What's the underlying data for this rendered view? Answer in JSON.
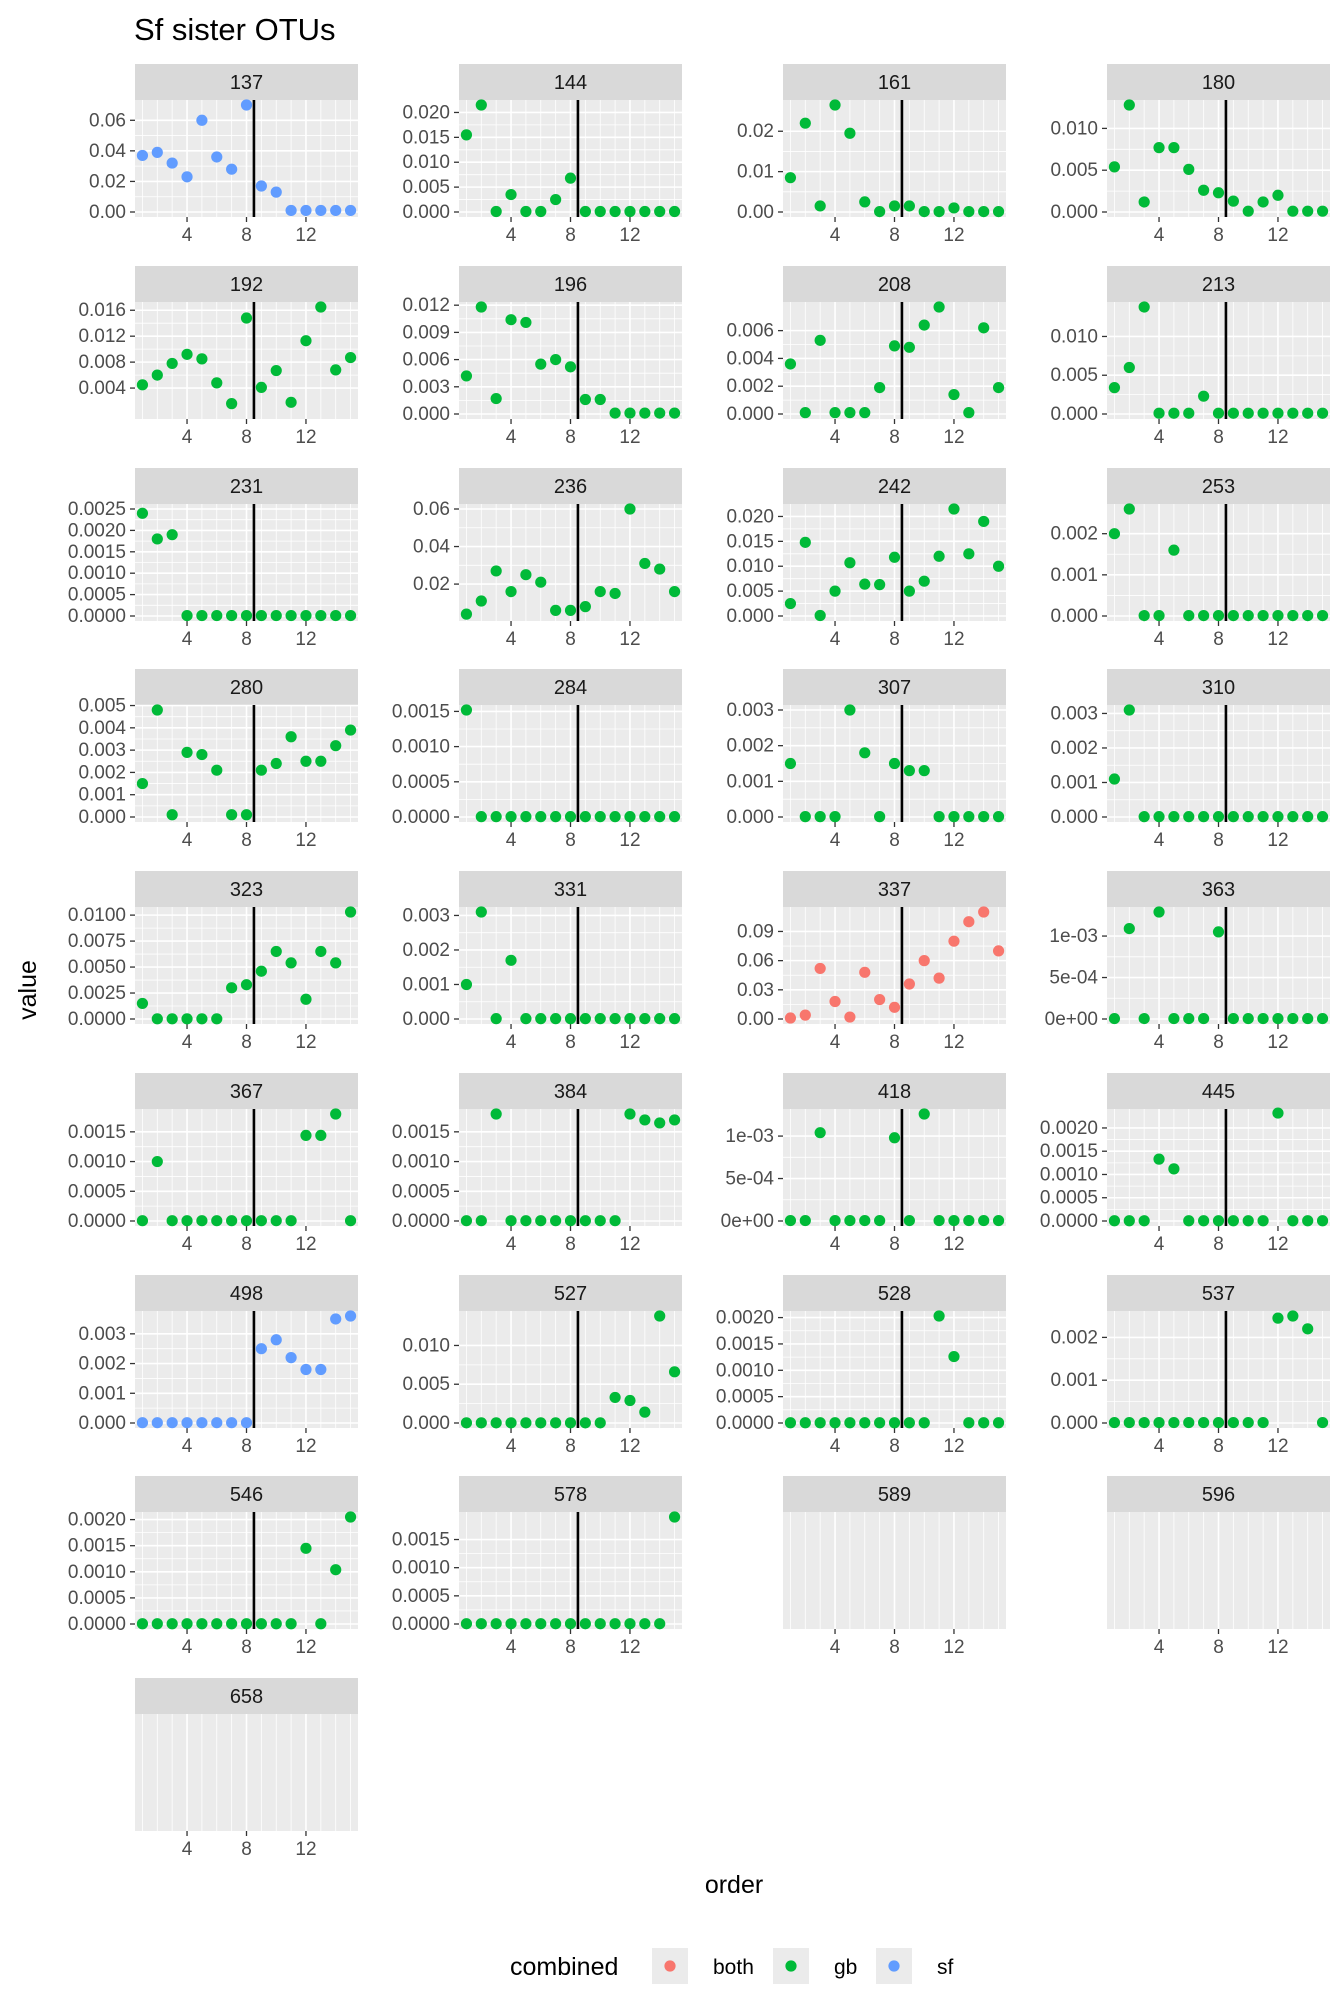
{
  "chart_data": {
    "type": "scatter",
    "title": "Sf sister OTUs",
    "xlabel": "order",
    "ylabel": "value",
    "xlim": [
      0.5,
      15.5
    ],
    "x_ticks": [
      4,
      8,
      12
    ],
    "x_values": [
      1,
      2,
      3,
      4,
      5,
      6,
      7,
      8,
      9,
      10,
      11,
      12,
      13,
      14,
      15
    ],
    "facet_column_count": 4,
    "vline_x": 8.5,
    "grid": true,
    "legend": {
      "title": "combined",
      "position": "bottom",
      "entries": [
        {
          "label": "both",
          "color": "#F8766D"
        },
        {
          "label": "gb",
          "color": "#00BA38"
        },
        {
          "label": "sf",
          "color": "#619CFF"
        }
      ]
    },
    "panels": [
      {
        "label": "137",
        "ylim": [
          0,
          0.07
        ],
        "yticks": [
          0,
          0.02,
          0.04,
          0.06
        ],
        "ytick_labels": [
          "0.00",
          "0.02",
          "0.04",
          "0.06"
        ],
        "group": "sf",
        "values": [
          0.037,
          0.039,
          0.032,
          0.023,
          0.06,
          0.036,
          0.028,
          0.07,
          0.017,
          0.013,
          0.001,
          0.001,
          0.001,
          0.001,
          0.001
        ]
      },
      {
        "label": "144",
        "ylim": [
          0,
          0.0215
        ],
        "yticks": [
          0,
          0.005,
          0.01,
          0.015,
          0.02
        ],
        "ytick_labels": [
          "0.000",
          "0.005",
          "0.010",
          "0.015",
          "0.020"
        ],
        "group": "gb",
        "values": [
          0.0155,
          0.0215,
          0.0001,
          0.0035,
          0.0001,
          0.0001,
          0.0025,
          0.0068,
          0.0001,
          0.0001,
          0.0001,
          0.0001,
          0.0001,
          0.0001,
          0.0001
        ]
      },
      {
        "label": "161",
        "ylim": [
          0,
          0.0265
        ],
        "yticks": [
          0,
          0.01,
          0.02
        ],
        "ytick_labels": [
          "0.00",
          "0.01",
          "0.02"
        ],
        "group": "gb",
        "values": [
          0.0085,
          0.022,
          0.0015,
          0.0265,
          0.0195,
          0.0025,
          0.0001,
          0.0015,
          0.0015,
          0.0001,
          0.0001,
          0.001,
          0.0001,
          0.0001,
          0.0001
        ]
      },
      {
        "label": "180",
        "ylim": [
          0,
          0.0128
        ],
        "yticks": [
          0,
          0.005,
          0.01
        ],
        "ytick_labels": [
          "0.000",
          "0.005",
          "0.010"
        ],
        "group": "gb",
        "values": [
          0.0054,
          0.0128,
          0.0012,
          0.0077,
          0.0077,
          0.0051,
          0.0026,
          0.0023,
          0.0013,
          0.0001,
          0.0012,
          0.002,
          0.0001,
          0.0001,
          0.0001
        ]
      },
      {
        "label": "192",
        "ylim": [
          0,
          0.0165
        ],
        "yticks": [
          0.004,
          0.008,
          0.012,
          0.016
        ],
        "ytick_labels": [
          "0.004",
          "0.008",
          "0.012",
          "0.016"
        ],
        "group": "gb",
        "values": [
          0.0045,
          0.006,
          0.0078,
          0.0092,
          0.0085,
          0.0048,
          0.0016,
          0.0148,
          0.0041,
          0.0067,
          0.0018,
          0.0113,
          0.0165,
          0.0068,
          0.0087
        ]
      },
      {
        "label": "196",
        "ylim": [
          0,
          0.0118
        ],
        "yticks": [
          0,
          0.003,
          0.006,
          0.009,
          0.012
        ],
        "ytick_labels": [
          "0.000",
          "0.003",
          "0.006",
          "0.009",
          "0.012"
        ],
        "group": "gb",
        "values": [
          0.0042,
          0.0118,
          0.0017,
          0.0104,
          0.0101,
          0.0055,
          0.006,
          0.0052,
          0.0016,
          0.0016,
          0.0001,
          0.0001,
          0.0001,
          0.0001,
          0.0001
        ]
      },
      {
        "label": "208",
        "ylim": [
          0,
          0.0077
        ],
        "yticks": [
          0,
          0.002,
          0.004,
          0.006
        ],
        "ytick_labels": [
          "0.000",
          "0.002",
          "0.004",
          "0.006"
        ],
        "group": "gb",
        "values": [
          0.0036,
          0.0001,
          0.0053,
          0.0001,
          0.0001,
          0.0001,
          0.0019,
          0.0049,
          0.0048,
          0.0064,
          0.0077,
          0.0014,
          0.0001,
          0.0062,
          0.0019
        ]
      },
      {
        "label": "213",
        "ylim": [
          0,
          0.0138
        ],
        "yticks": [
          0,
          0.005,
          0.01
        ],
        "ytick_labels": [
          "0.000",
          "0.005",
          "0.010"
        ],
        "group": "gb",
        "values": [
          0.0034,
          0.006,
          0.0138,
          0.0001,
          0.0001,
          0.0001,
          0.0023,
          0.0001,
          0.0001,
          0.0001,
          0.0001,
          0.0001,
          0.0001,
          0.0001,
          0.0001
        ]
      },
      {
        "label": "231",
        "ylim": [
          0,
          0.0025
        ],
        "yticks": [
          0,
          0.0005,
          0.001,
          0.0015,
          0.002,
          0.0025
        ],
        "ytick_labels": [
          "0.0000",
          "0.0005",
          "0.0010",
          "0.0015",
          "0.0020",
          "0.0025"
        ],
        "group": "gb",
        "values": [
          0.0024,
          0.0018,
          0.0019,
          1e-05,
          1e-05,
          1e-05,
          1e-05,
          1e-05,
          1e-05,
          1e-05,
          1e-05,
          1e-05,
          1e-05,
          1e-05,
          1e-05
        ]
      },
      {
        "label": "236",
        "ylim": [
          0.003,
          0.06
        ],
        "yticks": [
          0.02,
          0.04,
          0.06
        ],
        "ytick_labels": [
          "0.02",
          "0.04",
          "0.06"
        ],
        "group": "gb",
        "values": [
          0.004,
          0.011,
          0.027,
          0.016,
          0.025,
          0.021,
          0.006,
          0.006,
          0.008,
          0.016,
          0.015,
          0.06,
          0.031,
          0.028,
          0.016
        ]
      },
      {
        "label": "242",
        "ylim": [
          0,
          0.0215
        ],
        "yticks": [
          0,
          0.005,
          0.01,
          0.015,
          0.02
        ],
        "ytick_labels": [
          "0.000",
          "0.005",
          "0.010",
          "0.015",
          "0.020"
        ],
        "group": "gb",
        "values": [
          0.0025,
          0.0148,
          0.0001,
          0.005,
          0.0107,
          0.0064,
          0.0063,
          0.0118,
          0.005,
          0.007,
          0.012,
          0.0215,
          0.0125,
          0.019,
          0.01
        ]
      },
      {
        "label": "253",
        "ylim": [
          0,
          0.0026
        ],
        "yticks": [
          0,
          0.001,
          0.002
        ],
        "ytick_labels": [
          "0.000",
          "0.001",
          "0.002"
        ],
        "group": "gb",
        "values": [
          0.002,
          0.0026,
          1e-05,
          1e-05,
          0.0016,
          1e-05,
          1e-05,
          1e-05,
          1e-05,
          1e-05,
          1e-05,
          1e-05,
          1e-05,
          1e-05,
          1e-05
        ]
      },
      {
        "label": "280",
        "ylim": [
          0,
          0.0048
        ],
        "yticks": [
          0,
          0.001,
          0.002,
          0.003,
          0.004,
          0.005
        ],
        "ytick_labels": [
          "0.000",
          "0.001",
          "0.002",
          "0.003",
          "0.004",
          "0.005"
        ],
        "group": "gb",
        "values": [
          0.0015,
          0.0048,
          0.0001,
          0.0029,
          0.0028,
          0.0021,
          0.0001,
          0.0001,
          0.0021,
          0.0024,
          0.0036,
          0.0025,
          0.0025,
          0.0032,
          0.0039
        ]
      },
      {
        "label": "284",
        "ylim": [
          0,
          0.00152
        ],
        "yticks": [
          0,
          0.0005,
          0.001,
          0.0015
        ],
        "ytick_labels": [
          "0.0000",
          "0.0005",
          "0.0010",
          "0.0015"
        ],
        "group": "gb",
        "values": [
          0.00152,
          5e-06,
          5e-06,
          5e-06,
          5e-06,
          5e-06,
          5e-06,
          5e-06,
          5e-06,
          5e-06,
          5e-06,
          5e-06,
          5e-06,
          5e-06,
          5e-06
        ]
      },
      {
        "label": "307",
        "ylim": [
          0,
          0.003
        ],
        "yticks": [
          0,
          0.001,
          0.002,
          0.003
        ],
        "ytick_labels": [
          "0.000",
          "0.001",
          "0.002",
          "0.003"
        ],
        "group": "gb",
        "values": [
          0.0015,
          1e-05,
          1e-05,
          1e-05,
          0.003,
          0.0018,
          1e-05,
          0.0015,
          0.0013,
          0.0013,
          1e-05,
          1e-05,
          1e-05,
          1e-05,
          1e-05
        ]
      },
      {
        "label": "310",
        "ylim": [
          0,
          0.0031
        ],
        "yticks": [
          0,
          0.001,
          0.002,
          0.003
        ],
        "ytick_labels": [
          "0.000",
          "0.001",
          "0.002",
          "0.003"
        ],
        "group": "gb",
        "values": [
          0.0011,
          0.0031,
          1e-05,
          1e-05,
          1e-05,
          1e-05,
          1e-05,
          1e-05,
          1e-05,
          1e-05,
          1e-05,
          1e-05,
          1e-05,
          1e-05,
          1e-05
        ]
      },
      {
        "label": "323",
        "ylim": [
          0,
          0.0103
        ],
        "yticks": [
          0,
          0.0025,
          0.005,
          0.0075,
          0.01
        ],
        "ytick_labels": [
          "0.0000",
          "0.0025",
          "0.0050",
          "0.0075",
          "0.0100"
        ],
        "group": "gb",
        "values": [
          0.0015,
          2e-05,
          2e-05,
          2e-05,
          2e-05,
          2e-05,
          0.003,
          0.0033,
          0.0046,
          0.0065,
          0.0054,
          0.0019,
          0.0065,
          0.0054,
          0.0103
        ]
      },
      {
        "label": "331",
        "ylim": [
          0,
          0.0031
        ],
        "yticks": [
          0,
          0.001,
          0.002,
          0.003
        ],
        "ytick_labels": [
          "0.000",
          "0.001",
          "0.002",
          "0.003"
        ],
        "group": "gb",
        "values": [
          0.001,
          0.0031,
          1e-05,
          0.0017,
          1e-05,
          1e-05,
          1e-05,
          1e-05,
          1e-05,
          1e-05,
          1e-05,
          1e-05,
          1e-05,
          1e-05,
          1e-05
        ]
      },
      {
        "label": "337",
        "ylim": [
          0,
          0.11
        ],
        "yticks": [
          0,
          0.03,
          0.06,
          0.09
        ],
        "ytick_labels": [
          "0.00",
          "0.03",
          "0.06",
          "0.09"
        ],
        "group": "both",
        "values": [
          0.001,
          0.004,
          0.052,
          0.018,
          0.002,
          0.048,
          0.02,
          0.012,
          0.036,
          0.06,
          0.042,
          0.08,
          0.1,
          0.11,
          0.07
        ]
      },
      {
        "label": "363",
        "ylim": [
          0,
          0.00129
        ],
        "yticks": [
          0,
          0.0005,
          0.001
        ],
        "ytick_labels": [
          "0e+00",
          "5e-04",
          "1e-03"
        ],
        "group": "gb",
        "values": [
          5e-06,
          0.00109,
          5e-06,
          0.00129,
          5e-06,
          5e-06,
          5e-06,
          0.00105,
          5e-06,
          5e-06,
          5e-06,
          5e-06,
          5e-06,
          5e-06,
          5e-06
        ]
      },
      {
        "label": "367",
        "ylim": [
          0,
          0.0018
        ],
        "yticks": [
          0,
          0.0005,
          0.001,
          0.0015
        ],
        "ytick_labels": [
          "0.0000",
          "0.0005",
          "0.0010",
          "0.0015"
        ],
        "group": "gb",
        "values": [
          5e-06,
          0.001,
          5e-06,
          5e-06,
          5e-06,
          5e-06,
          5e-06,
          5e-06,
          5e-06,
          5e-06,
          5e-06,
          0.00144,
          0.00144,
          0.0018,
          5e-06
        ]
      },
      {
        "label": "384",
        "ylim": [
          0,
          0.0018
        ],
        "yticks": [
          0,
          0.0005,
          0.001,
          0.0015
        ],
        "ytick_labels": [
          "0.0000",
          "0.0005",
          "0.0010",
          "0.0015"
        ],
        "group": "gb",
        "values": [
          5e-06,
          5e-06,
          0.0018,
          5e-06,
          5e-06,
          5e-06,
          5e-06,
          5e-06,
          5e-06,
          5e-06,
          5e-06,
          0.0018,
          0.0017,
          0.00165,
          0.0017
        ]
      },
      {
        "label": "418",
        "ylim": [
          0,
          0.00126
        ],
        "yticks": [
          0,
          0.0005,
          0.001
        ],
        "ytick_labels": [
          "0e+00",
          "5e-04",
          "1e-03"
        ],
        "group": "gb",
        "values": [
          5e-06,
          5e-06,
          0.00104,
          5e-06,
          5e-06,
          5e-06,
          5e-06,
          0.00098,
          5e-06,
          0.00126,
          5e-06,
          5e-06,
          5e-06,
          5e-06,
          5e-06
        ]
      },
      {
        "label": "445",
        "ylim": [
          0,
          0.0023
        ],
        "yticks": [
          0,
          0.0005,
          0.001,
          0.0015,
          0.002
        ],
        "ytick_labels": [
          "0.0000",
          "0.0005",
          "0.0010",
          "0.0015",
          "0.0020"
        ],
        "group": "gb",
        "values": [
          5e-06,
          5e-06,
          5e-06,
          0.00133,
          0.00112,
          5e-06,
          5e-06,
          5e-06,
          5e-06,
          5e-06,
          5e-06,
          0.00232,
          5e-06,
          5e-06,
          5e-06
        ]
      },
      {
        "label": "498",
        "ylim": [
          0,
          0.0036
        ],
        "yticks": [
          0,
          0.001,
          0.002,
          0.003
        ],
        "ytick_labels": [
          "0.000",
          "0.001",
          "0.002",
          "0.003"
        ],
        "group": "sf",
        "values": [
          1e-05,
          1e-05,
          1e-05,
          1e-05,
          1e-05,
          1e-05,
          1e-05,
          1e-05,
          0.0025,
          0.0028,
          0.0022,
          0.0018,
          0.0018,
          0.0035,
          0.0036
        ]
      },
      {
        "label": "527",
        "ylim": [
          0,
          0.0138
        ],
        "yticks": [
          0,
          0.005,
          0.01
        ],
        "ytick_labels": [
          "0.000",
          "0.005",
          "0.010"
        ],
        "group": "gb",
        "values": [
          2e-05,
          2e-05,
          2e-05,
          2e-05,
          2e-05,
          2e-05,
          2e-05,
          2e-05,
          2e-05,
          2e-05,
          0.0033,
          0.0029,
          0.0014,
          0.0138,
          0.0066
        ]
      },
      {
        "label": "528",
        "ylim": [
          0,
          0.00203
        ],
        "yticks": [
          0,
          0.0005,
          0.001,
          0.0015,
          0.002
        ],
        "ytick_labels": [
          "0.0000",
          "0.0005",
          "0.0010",
          "0.0015",
          "0.0020"
        ],
        "group": "gb",
        "values": [
          5e-06,
          5e-06,
          5e-06,
          5e-06,
          5e-06,
          5e-06,
          5e-06,
          5e-06,
          5e-06,
          5e-06,
          0.00203,
          0.00126,
          5e-06,
          5e-06,
          5e-06
        ]
      },
      {
        "label": "537",
        "ylim": [
          0,
          0.0025
        ],
        "yticks": [
          0,
          0.001,
          0.002
        ],
        "ytick_labels": [
          "0.000",
          "0.001",
          "0.002"
        ],
        "group": "gb",
        "values": [
          1e-05,
          1e-05,
          1e-05,
          1e-05,
          1e-05,
          1e-05,
          1e-05,
          1e-05,
          1e-05,
          1e-05,
          1e-05,
          0.00245,
          0.0025,
          0.0022,
          1e-05
        ]
      },
      {
        "label": "546",
        "ylim": [
          0,
          0.00205
        ],
        "yticks": [
          0,
          0.0005,
          0.001,
          0.0015,
          0.002
        ],
        "ytick_labels": [
          "0.0000",
          "0.0005",
          "0.0010",
          "0.0015",
          "0.0020"
        ],
        "group": "gb",
        "values": [
          5e-06,
          5e-06,
          5e-06,
          5e-06,
          5e-06,
          5e-06,
          5e-06,
          5e-06,
          5e-06,
          5e-06,
          5e-06,
          0.00145,
          5e-06,
          0.00104,
          0.00205
        ]
      },
      {
        "label": "578",
        "ylim": [
          0,
          0.0019
        ],
        "yticks": [
          0,
          0.0005,
          0.001,
          0.0015
        ],
        "ytick_labels": [
          "0.0000",
          "0.0005",
          "0.0010",
          "0.0015"
        ],
        "group": "gb",
        "values": [
          5e-06,
          5e-06,
          5e-06,
          5e-06,
          5e-06,
          5e-06,
          5e-06,
          5e-06,
          5e-06,
          5e-06,
          5e-06,
          5e-06,
          5e-06,
          5e-06,
          0.0019
        ]
      },
      {
        "label": "589",
        "ylim": null,
        "yticks": [],
        "ytick_labels": [],
        "group": "gb",
        "values": []
      },
      {
        "label": "596",
        "ylim": null,
        "yticks": [],
        "ytick_labels": [],
        "group": "gb",
        "values": []
      },
      {
        "label": "658",
        "ylim": null,
        "yticks": [],
        "ytick_labels": [],
        "group": "gb",
        "values": []
      }
    ]
  }
}
